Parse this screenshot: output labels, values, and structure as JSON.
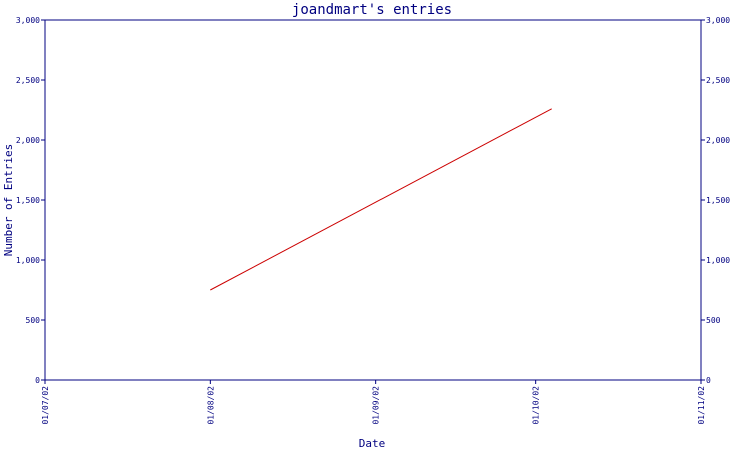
{
  "chart_data": {
    "type": "line",
    "title": "joandmart's entries",
    "xlabel": "Date",
    "ylabel": "Number of Entries",
    "x_ticks": [
      "01/07/02",
      "01/08/02",
      "01/09/02",
      "01/10/02",
      "01/11/02"
    ],
    "x_range": [
      "2002-07-01",
      "2002-11-01"
    ],
    "ylim": [
      0,
      3000
    ],
    "y_ticks": [
      0,
      500,
      1000,
      1500,
      2000,
      2500,
      3000
    ],
    "y_tick_labels": [
      "0",
      "500",
      "1,000",
      "1,500",
      "2,000",
      "2,500",
      "3,000"
    ],
    "series": [
      {
        "x": [
          "2002-08-01",
          "2002-10-04"
        ],
        "values": [
          750,
          2260
        ]
      }
    ],
    "grid": false,
    "legend": "none",
    "colors": {
      "axis": "#000080",
      "line": "#cc0000",
      "background": "#ffffff"
    }
  }
}
